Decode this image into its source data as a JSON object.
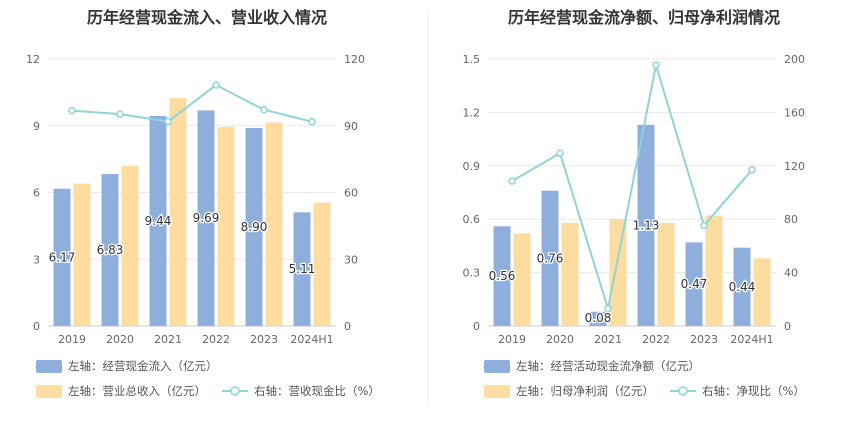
{
  "chart_data": [
    {
      "type": "bar",
      "title": "历年经营现金流入、营业收入情况",
      "categories": [
        "2019",
        "2020",
        "2021",
        "2022",
        "2023",
        "2024H1"
      ],
      "y_left": {
        "range": [
          0,
          12
        ],
        "ticks": [
          "0",
          "3",
          "6",
          "9",
          "12"
        ]
      },
      "y_right": {
        "range": [
          0,
          120
        ],
        "ticks": [
          "0",
          "30",
          "60",
          "90",
          "120"
        ]
      },
      "series": [
        {
          "name": "左轴：经营现金流入（亿元）",
          "kind": "bar",
          "axis": "left",
          "color": "#8eaedc",
          "values": [
            6.17,
            6.83,
            9.44,
            9.69,
            8.9,
            5.11
          ],
          "labels": [
            "6.17",
            "6.83",
            "9.44",
            "9.69",
            "8.90",
            "5.11"
          ]
        },
        {
          "name": "左轴：营业总收入（亿元）",
          "kind": "bar",
          "axis": "left",
          "color": "#fddc9f",
          "values": [
            6.4,
            7.2,
            10.25,
            8.95,
            9.15,
            5.55
          ]
        },
        {
          "name": "右轴：营收现金比（%）",
          "kind": "line",
          "axis": "right",
          "color": "#8fd3db",
          "values": [
            96.8,
            95.2,
            91.9,
            108.3,
            97.2,
            91.8
          ]
        }
      ],
      "grid": true,
      "legend_position": "bottom"
    },
    {
      "type": "bar",
      "title": "历年经营现金流净额、归母净利润情况",
      "categories": [
        "2019",
        "2020",
        "2021",
        "2022",
        "2023",
        "2024H1"
      ],
      "y_left": {
        "range": [
          0,
          1.5
        ],
        "ticks": [
          "0",
          "0.3",
          "0.6",
          "0.9",
          "1.2",
          "1.5"
        ]
      },
      "y_right": {
        "range": [
          0,
          200
        ],
        "ticks": [
          "0",
          "40",
          "80",
          "120",
          "160",
          "200"
        ]
      },
      "series": [
        {
          "name": "左轴：经营活动现金流净额（亿元）",
          "kind": "bar",
          "axis": "left",
          "color": "#8eaedc",
          "values": [
            0.56,
            0.76,
            0.08,
            1.13,
            0.47,
            0.44
          ],
          "labels": [
            "0.56",
            "0.76",
            "0.08",
            "1.13",
            "0.47",
            "0.44"
          ]
        },
        {
          "name": "左轴：归母净利润（亿元）",
          "kind": "bar",
          "axis": "left",
          "color": "#fddc9f",
          "values": [
            0.52,
            0.58,
            0.6,
            0.58,
            0.62,
            0.38
          ]
        },
        {
          "name": "右轴：净现比（%）",
          "kind": "line",
          "axis": "right",
          "color": "#8fd3db",
          "values": [
            108.5,
            129.5,
            13.0,
            195.5,
            75.3,
            117.0
          ]
        }
      ],
      "grid": true,
      "legend_position": "bottom"
    }
  ]
}
